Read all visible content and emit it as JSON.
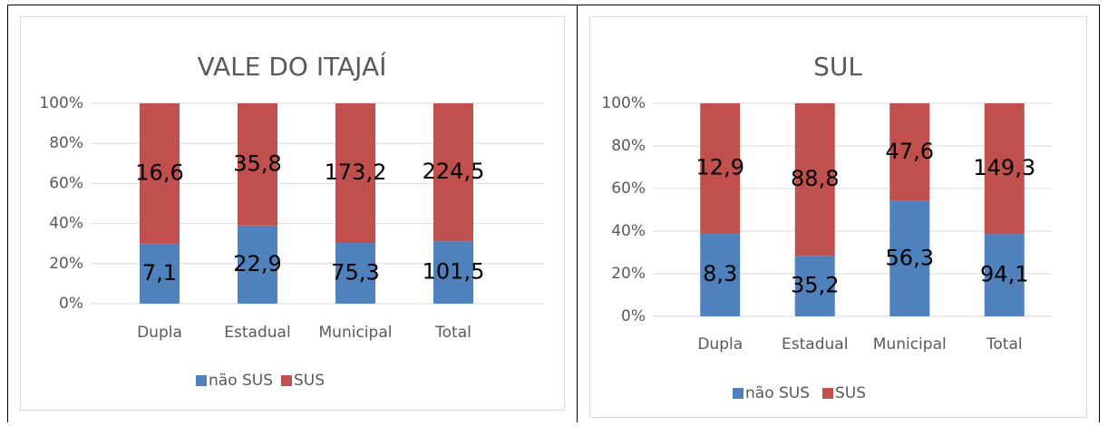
{
  "chart_data": [
    {
      "type": "stacked_percent_bar",
      "title": "VALE DO ITAJAÍ",
      "categories": [
        "Dupla",
        "Estadual",
        "Municipal",
        "Total"
      ],
      "series": [
        {
          "name": "não SUS",
          "color": "#4f81bd",
          "values": [
            7.1,
            22.9,
            75.3,
            101.5
          ],
          "value_labels": [
            "7,1",
            "22,9",
            "75,3",
            "101,5"
          ]
        },
        {
          "name": "SUS",
          "color": "#c0504d",
          "values": [
            16.6,
            35.8,
            173.2,
            224.5
          ],
          "value_labels": [
            "16,6",
            "35,8",
            "173,2",
            "224,5"
          ]
        }
      ],
      "ylim": [
        0,
        100
      ],
      "yticks": [
        {
          "value": 0,
          "label": "0%"
        },
        {
          "value": 20,
          "label": "20%"
        },
        {
          "value": 40,
          "label": "40%"
        },
        {
          "value": 60,
          "label": "60%"
        },
        {
          "value": 80,
          "label": "80%"
        },
        {
          "value": 100,
          "label": "100%"
        }
      ],
      "grid": true,
      "legend": "bottom"
    },
    {
      "type": "stacked_percent_bar",
      "title": "SUL",
      "categories": [
        "Dupla",
        "Estadual",
        "Municipal",
        "Total"
      ],
      "series": [
        {
          "name": "não SUS",
          "color": "#4f81bd",
          "values": [
            8.3,
            35.2,
            56.3,
            94.1
          ],
          "value_labels": [
            "8,3",
            "35,2",
            "56,3",
            "94,1"
          ]
        },
        {
          "name": "SUS",
          "color": "#c0504d",
          "values": [
            12.9,
            88.8,
            47.6,
            149.3
          ],
          "value_labels": [
            "12,9",
            "88,8",
            "47,6",
            "149,3"
          ]
        }
      ],
      "ylim": [
        0,
        100
      ],
      "yticks": [
        {
          "value": 0,
          "label": "0%"
        },
        {
          "value": 20,
          "label": "20%"
        },
        {
          "value": 40,
          "label": "40%"
        },
        {
          "value": 60,
          "label": "60%"
        },
        {
          "value": 80,
          "label": "80%"
        },
        {
          "value": 100,
          "label": "100%"
        }
      ],
      "grid": true,
      "legend": "bottom"
    }
  ]
}
